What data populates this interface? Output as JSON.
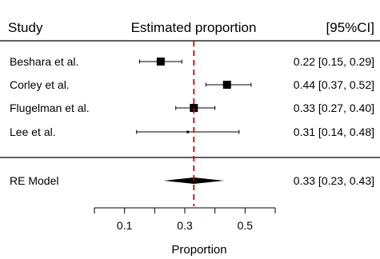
{
  "chart_data": {
    "type": "forest",
    "header": {
      "study": "Study",
      "estimate": "Estimated proportion",
      "ci": "[95%CI]"
    },
    "studies": [
      {
        "label": "Beshara et al.",
        "estimate": 0.22,
        "lower": 0.15,
        "upper": 0.29,
        "ci_text": "0.22 [0.15, 0.29]",
        "weight": 1.0
      },
      {
        "label": "Corley et al.",
        "estimate": 0.44,
        "lower": 0.37,
        "upper": 0.52,
        "ci_text": "0.44 [0.37, 0.52]",
        "weight": 1.0
      },
      {
        "label": "Flugelman et al.",
        "estimate": 0.33,
        "lower": 0.27,
        "upper": 0.4,
        "ci_text": "0.33 [0.27, 0.40]",
        "weight": 1.0
      },
      {
        "label": "Lee et al.",
        "estimate": 0.31,
        "lower": 0.14,
        "upper": 0.48,
        "ci_text": "0.31 [0.14, 0.48]",
        "weight": 0.15
      }
    ],
    "summary": {
      "label": "RE Model",
      "estimate": 0.33,
      "lower": 0.23,
      "upper": 0.43,
      "ci_text": "0.33 [0.23, 0.43]"
    },
    "reference_line": 0.33,
    "x_axis": {
      "label": "Proportion",
      "range": [
        0.0,
        0.6
      ],
      "ticks": [
        0.0,
        0.1,
        0.2,
        0.3,
        0.4,
        0.5,
        0.6
      ],
      "tick_labels": [
        "",
        "0.1",
        "",
        "0.3",
        "",
        "0.5",
        ""
      ]
    },
    "colors": {
      "reference_line": "#cc0000",
      "marks": "#000000"
    }
  }
}
